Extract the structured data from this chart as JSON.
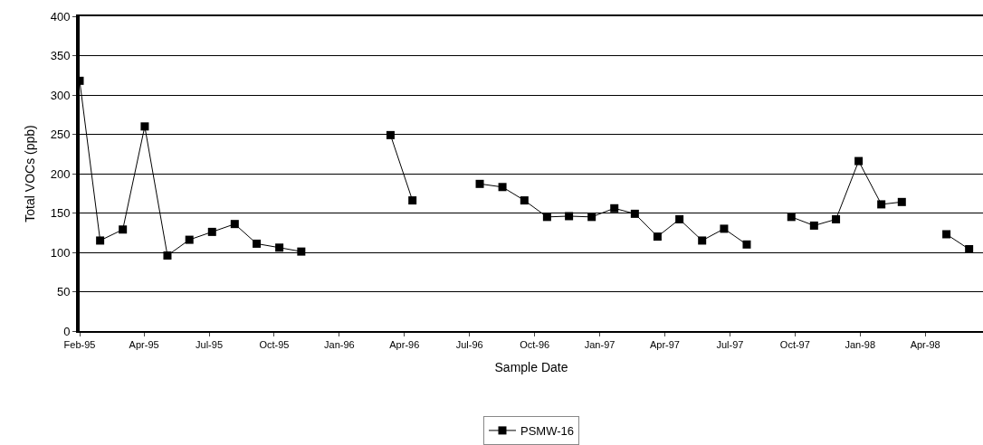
{
  "chart_data": {
    "type": "line",
    "xlabel": "Sample Date",
    "ylabel": "Total VOCs (ppb)",
    "x": [
      "1995-02",
      "1995-03",
      "1995-04",
      "1995-05",
      "1995-06",
      "1995-07",
      "1995-08",
      "1995-09",
      "1995-10",
      "1995-11",
      "1995-12",
      "1996-01",
      "1996-04",
      "1996-05",
      "1996-06",
      "1996-08",
      "1996-09",
      "1996-10",
      "1996-11",
      "1996-12",
      "1997-01",
      "1997-02",
      "1997-03",
      "1997-04",
      "1997-05",
      "1997-06",
      "1997-07",
      "1997-08",
      "1997-09",
      "1997-10",
      "1997-11",
      "1997-12",
      "1998-01",
      "1998-02",
      "1998-03",
      "1998-04",
      "1998-05",
      "1998-06"
    ],
    "series": [
      {
        "name": "PSMW-16",
        "color": "#000000",
        "values": [
          318,
          115,
          129,
          260,
          96,
          116,
          126,
          136,
          111,
          106,
          101,
          null,
          249,
          166,
          null,
          187,
          183,
          166,
          145,
          146,
          145,
          156,
          149,
          120,
          142,
          115,
          130,
          110,
          null,
          145,
          134,
          142,
          216,
          161,
          164,
          null,
          123,
          104
        ]
      }
    ],
    "xlim": [
      "1995-02-01",
      "1998-06-20"
    ],
    "xticks": [
      {
        "value": "1995-02-01",
        "label": "Feb-95"
      },
      {
        "value": "1995-04-30",
        "label": "Apr-95"
      },
      {
        "value": "1995-07-28",
        "label": "Jul-95"
      },
      {
        "value": "1995-10-25",
        "label": "Oct-95"
      },
      {
        "value": "1996-01-22",
        "label": "Jan-96"
      },
      {
        "value": "1996-04-20",
        "label": "Apr-96"
      },
      {
        "value": "1996-07-18",
        "label": "Jul-96"
      },
      {
        "value": "1996-10-15",
        "label": "Oct-96"
      },
      {
        "value": "1997-01-12",
        "label": "Jan-97"
      },
      {
        "value": "1997-04-11",
        "label": "Apr-97"
      },
      {
        "value": "1997-07-09",
        "label": "Jul-97"
      },
      {
        "value": "1997-10-06",
        "label": "Oct-97"
      },
      {
        "value": "1998-01-03",
        "label": "Jan-98"
      },
      {
        "value": "1998-04-02",
        "label": "Apr-98"
      }
    ],
    "ylim": [
      0,
      400
    ],
    "yticks": [
      0,
      50,
      100,
      150,
      200,
      250,
      300,
      350,
      400
    ],
    "grid": "y",
    "legend": "bottom",
    "marker": "square",
    "line_style": "solid"
  }
}
